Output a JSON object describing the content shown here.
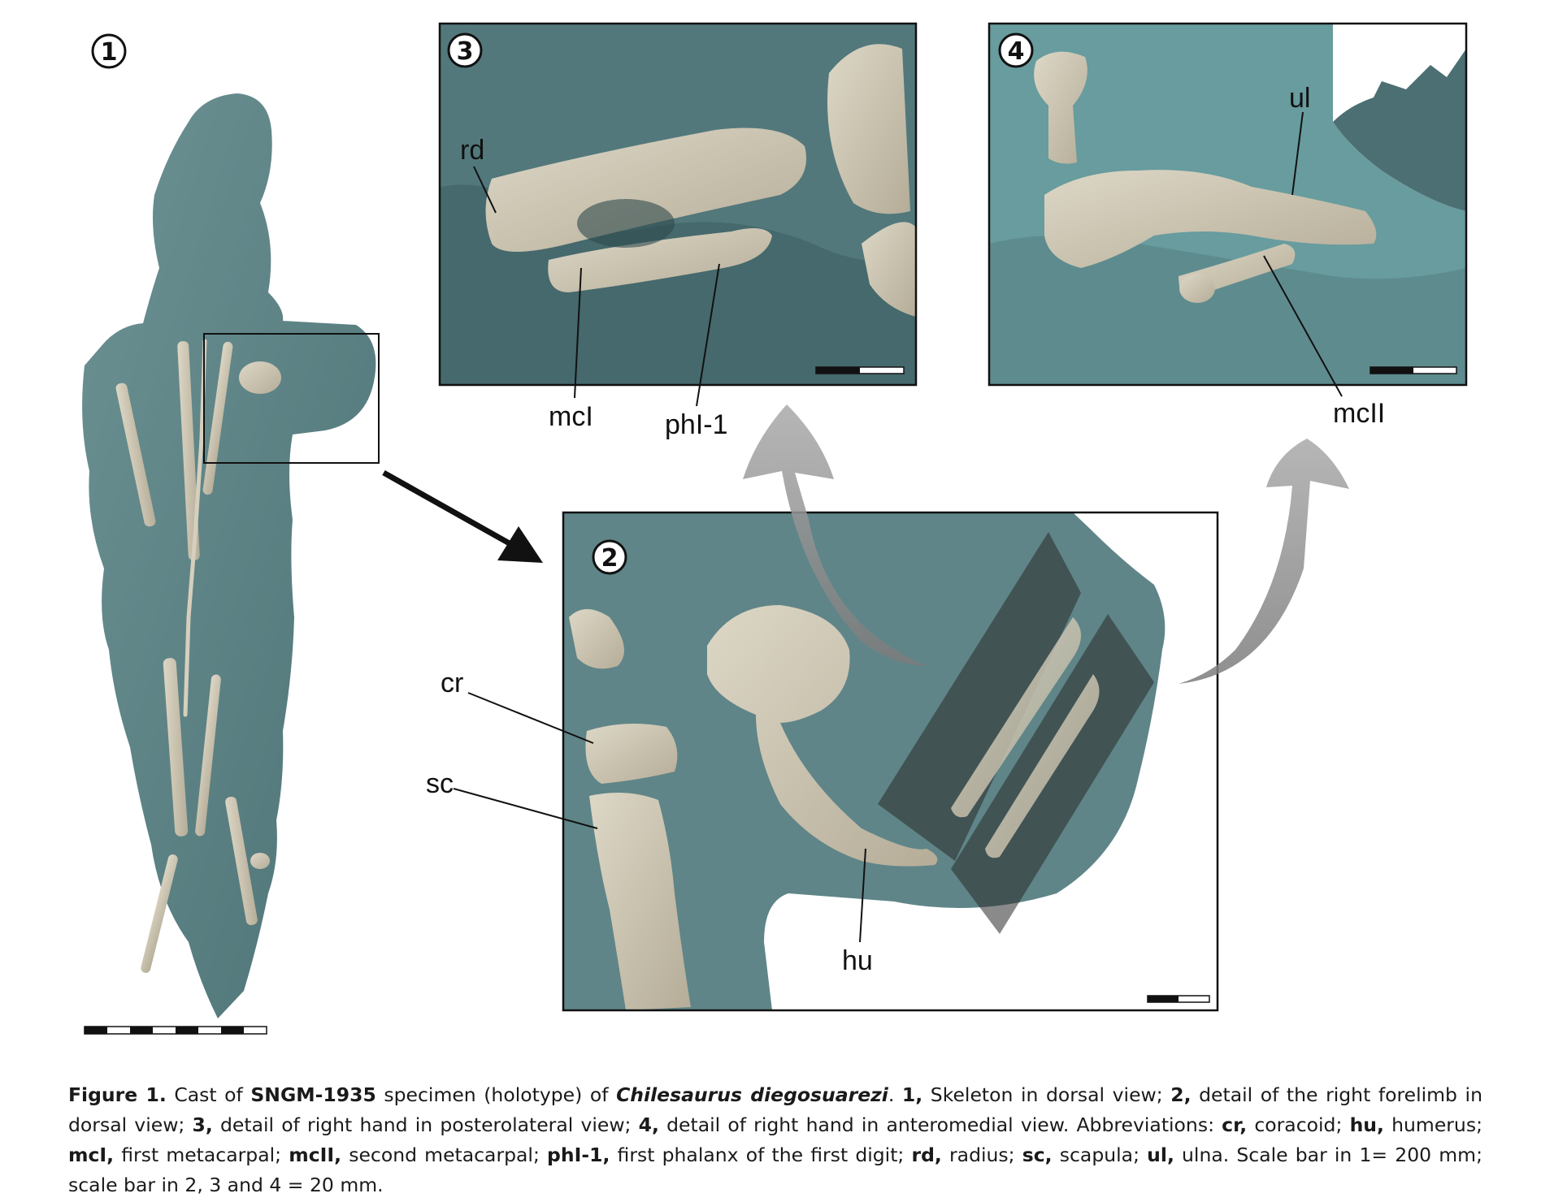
{
  "panels": {
    "p1": "1",
    "p2": "2",
    "p3": "3",
    "p4": "4"
  },
  "labels": {
    "rd": "rd",
    "mcI": "mcI",
    "phI1": "phI-1",
    "ul": "ul",
    "mcII": "mcII",
    "cr": "cr",
    "sc": "sc",
    "hu": "hu"
  },
  "caption": {
    "figure_label": "Figure 1.",
    "t1": " Cast of ",
    "specimen": "SNGM-1935",
    "t2": " specimen (holotype) of ",
    "species": "Chilesaurus diegosuarezi",
    "t3": ". ",
    "n1": "1,",
    "d1": " Skeleton in dorsal view; ",
    "n2": "2,",
    "d2": " detail of the right forelimb in dorsal view; ",
    "n3": "3,",
    "d3": " detail of right hand in posterolateral view; ",
    "n4": "4,",
    "d4": " detail of right hand in anteromedial view. Abbreviations: ",
    "a_cr": "cr,",
    "e_cr": " coracoid; ",
    "a_hu": "hu,",
    "e_hu": " humerus; ",
    "a_mcI": "mcI,",
    "e_mcI": " first metacarpal; ",
    "a_mcII": "mcII,",
    "e_mcII": " second metacarpal; ",
    "a_phI": "phI-1,",
    "e_phI": " first phalanx of the first digit; ",
    "a_rd": "rd,",
    "e_rd": " radius; ",
    "a_sc": "sc,",
    "e_sc": " scapula; ",
    "a_ul": "ul,",
    "e_ul": " ulna. Scale bar in 1= 200 mm; scale bar in 2, 3 and 4 = 20 mm."
  },
  "colors": {
    "matrix": "#5f8588",
    "bone": "#c9c3b3",
    "frame": "#111111"
  }
}
